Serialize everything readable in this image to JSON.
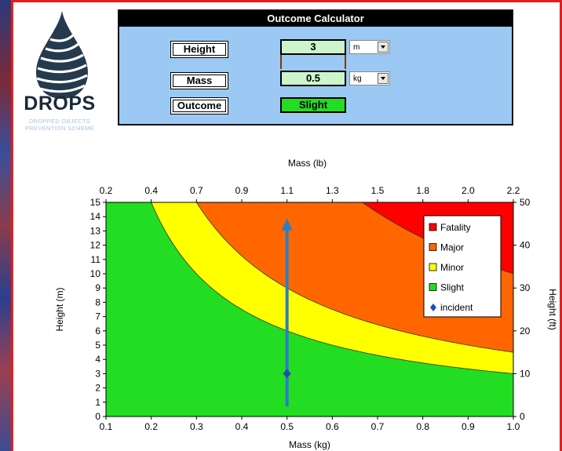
{
  "logo": {
    "title": "DROPS",
    "subtitle_line1": "DROPPED OBJECTS",
    "subtitle_line2": "PREVENTION SCHEME"
  },
  "calculator": {
    "title": "Outcome Calculator",
    "height_label": "Height",
    "height_value": "3",
    "height_unit": "m",
    "mass_label": "Mass",
    "mass_value": "0.5",
    "mass_unit": "kg",
    "outcome_label": "Outcome",
    "outcome_value": "Slight"
  },
  "chart_data": {
    "type": "area",
    "xlabel_bottom": "Mass (kg)",
    "xlabel_top": "Mass (lb)",
    "ylabel_left": "Height (m)",
    "ylabel_right": "Height (ft)",
    "xlim": [
      0.1,
      1.0
    ],
    "ylim": [
      0,
      15
    ],
    "x_top_lim": [
      0.2,
      2.2
    ],
    "y_right_lim": [
      0,
      50
    ],
    "x_ticks": [
      "0.1",
      "0.2",
      "0.3",
      "0.4",
      "0.5",
      "0.6",
      "0.7",
      "0.8",
      "0.9",
      "1.0"
    ],
    "x_top_ticks": [
      "0.2",
      "0.4",
      "0.7",
      "0.9",
      "1.1",
      "1.3",
      "1.5",
      "1.8",
      "2.0",
      "2.2"
    ],
    "y_ticks": [
      "0",
      "1",
      "2",
      "3",
      "4",
      "5",
      "6",
      "7",
      "8",
      "9",
      "10",
      "11",
      "12",
      "13",
      "14",
      "15"
    ],
    "y_right_ticks": [
      "0",
      "10",
      "20",
      "30",
      "40",
      "50"
    ],
    "colors": {
      "Fatality": "#ff0000",
      "Major": "#ff6600",
      "Minor": "#ffff00",
      "Slight": "#22dd22",
      "incident": "#1f4eb4",
      "arrow": "#2a7ec4"
    },
    "series": [
      {
        "name": "Fatality",
        "kind": "region"
      },
      {
        "name": "Major",
        "kind": "region",
        "boundary_k": 10
      },
      {
        "name": "Minor",
        "kind": "region",
        "boundary_k": 4.5
      },
      {
        "name": "Slight",
        "kind": "region",
        "boundary_k": 3
      },
      {
        "name": "incident",
        "kind": "point",
        "x": 0.5,
        "y": 3
      }
    ],
    "legend_position": "top-right",
    "arrow": {
      "x": 0.5,
      "y_from": 0.7,
      "y_to": 13.7
    }
  }
}
